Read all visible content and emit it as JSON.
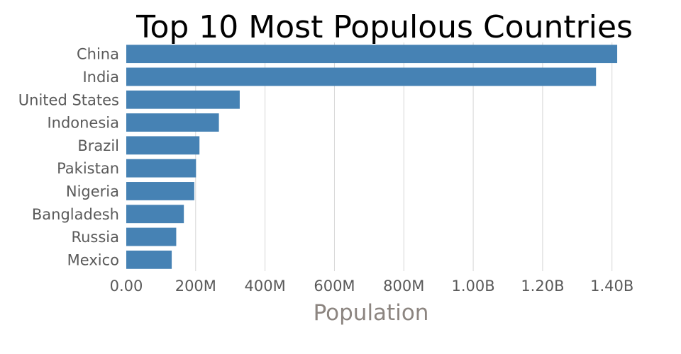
{
  "chart_data": {
    "type": "bar",
    "orientation": "horizontal",
    "title": "Top 10 Most Populous Countries",
    "xlabel": "Population",
    "ylabel": "",
    "categories": [
      "China",
      "India",
      "United States",
      "Indonesia",
      "Brazil",
      "Pakistan",
      "Nigeria",
      "Bangladesh",
      "Russia",
      "Mexico"
    ],
    "values": [
      1415000000,
      1354000000,
      327000000,
      267000000,
      211000000,
      201000000,
      196000000,
      166000000,
      144000000,
      131000000
    ],
    "xlim": [
      0,
      1466000000
    ],
    "xticks": [
      0,
      200000000,
      400000000,
      600000000,
      800000000,
      1000000000,
      1200000000,
      1400000000
    ],
    "xtick_labels": [
      "0.00",
      "200M",
      "400M",
      "600M",
      "800M",
      "1.00B",
      "1.20B",
      "1.40B"
    ],
    "grid": "vertical",
    "bar_color": "#4682b4"
  }
}
